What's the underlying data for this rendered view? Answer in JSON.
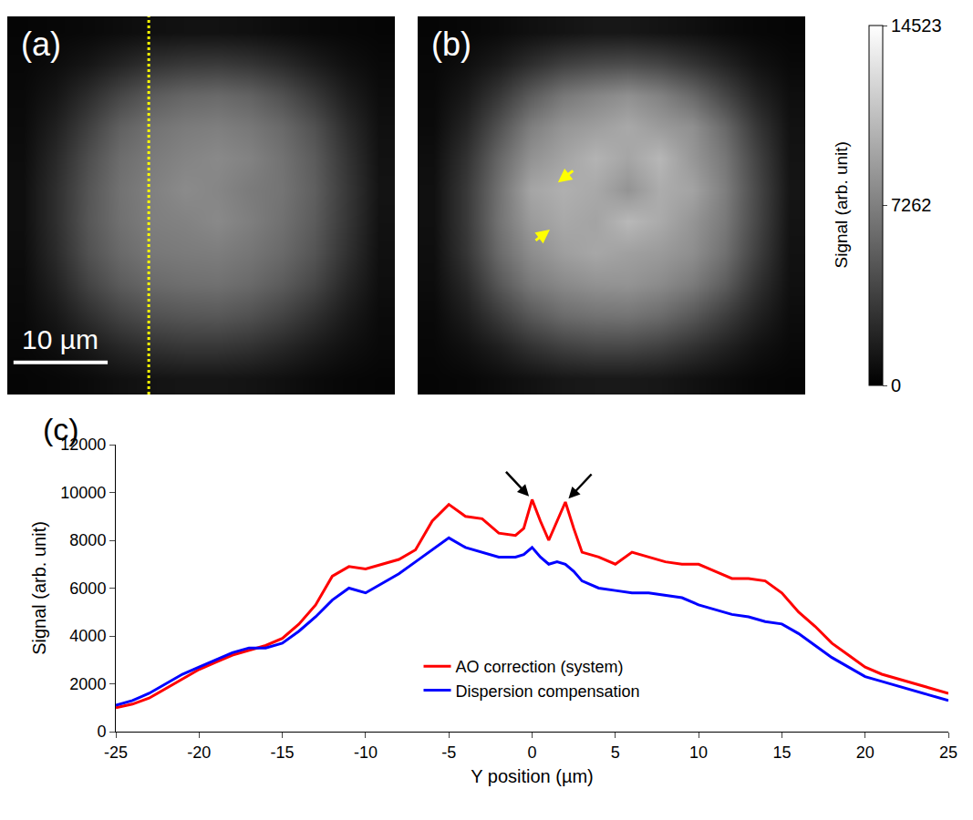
{
  "chart_data": [
    {
      "type": "heatmap",
      "label": "(a)",
      "annotations": [
        "10 µm"
      ],
      "tick_labels": false,
      "zlim": [
        0,
        14523
      ],
      "z": [
        [
          300,
          400,
          500,
          700,
          900,
          1000,
          1000,
          900,
          700,
          500,
          400,
          300
        ],
        [
          400,
          700,
          1200,
          2000,
          2800,
          3200,
          3300,
          3000,
          2400,
          1600,
          900,
          500
        ],
        [
          500,
          1200,
          2500,
          4000,
          5200,
          5800,
          6000,
          5600,
          4600,
          3200,
          1700,
          700
        ],
        [
          600,
          1800,
          3600,
          5500,
          6500,
          7000,
          7200,
          6800,
          6000,
          4600,
          2500,
          900
        ],
        [
          700,
          2300,
          4400,
          6200,
          7000,
          7500,
          7800,
          7400,
          6500,
          5200,
          3000,
          1000
        ],
        [
          800,
          2600,
          4800,
          6500,
          7300,
          7900,
          7600,
          7000,
          6600,
          5400,
          3200,
          1100
        ],
        [
          800,
          2600,
          4900,
          6400,
          7200,
          7400,
          7800,
          7200,
          6400,
          5200,
          3100,
          1000
        ],
        [
          700,
          2400,
          4600,
          6000,
          6800,
          7000,
          7100,
          6700,
          6000,
          4800,
          2800,
          900
        ],
        [
          600,
          1900,
          3800,
          5200,
          6000,
          6300,
          6400,
          6000,
          5200,
          4000,
          2200,
          800
        ],
        [
          500,
          1300,
          2600,
          3800,
          4600,
          4900,
          5000,
          4600,
          3800,
          2700,
          1500,
          600
        ],
        [
          400,
          800,
          1400,
          2200,
          2800,
          3100,
          3100,
          2800,
          2200,
          1500,
          900,
          500
        ],
        [
          300,
          400,
          600,
          900,
          1100,
          1200,
          1200,
          1100,
          900,
          600,
          400,
          300
        ]
      ]
    },
    {
      "type": "heatmap",
      "label": "(b)",
      "tick_labels": false,
      "zlim": [
        0,
        14523
      ],
      "zticks": [
        0,
        7262,
        14523
      ],
      "colorbar_title": "Signal (arb. unit)",
      "z": [
        [
          300,
          400,
          600,
          900,
          1100,
          1300,
          1300,
          1100,
          900,
          600,
          400,
          300
        ],
        [
          400,
          800,
          1500,
          2600,
          3600,
          4100,
          4300,
          3900,
          3000,
          2000,
          1000,
          500
        ],
        [
          500,
          1400,
          3100,
          5200,
          6800,
          7600,
          8200,
          7400,
          6000,
          4000,
          2000,
          800
        ],
        [
          600,
          2100,
          4600,
          7200,
          8500,
          9000,
          9600,
          8800,
          8200,
          6000,
          3100,
          1000
        ],
        [
          800,
          2800,
          5800,
          8300,
          9300,
          10200,
          9400,
          10400,
          8600,
          6800,
          3800,
          1100
        ],
        [
          900,
          3200,
          6400,
          9400,
          10000,
          9600,
          8400,
          9800,
          9300,
          7200,
          4100,
          1200
        ],
        [
          900,
          3200,
          6500,
          8800,
          9600,
          9300,
          10500,
          9700,
          8500,
          6900,
          4000,
          1100
        ],
        [
          800,
          3000,
          6000,
          8000,
          9000,
          9500,
          9100,
          8800,
          8100,
          6400,
          3600,
          1000
        ],
        [
          700,
          2300,
          4900,
          6900,
          7800,
          8300,
          8400,
          7900,
          7000,
          5300,
          2800,
          900
        ],
        [
          500,
          1600,
          3300,
          5000,
          6100,
          6500,
          6600,
          6100,
          5000,
          3500,
          1900,
          700
        ],
        [
          400,
          900,
          1700,
          2800,
          3600,
          4000,
          4000,
          3600,
          2800,
          1900,
          1000,
          500
        ],
        [
          300,
          400,
          700,
          1000,
          1300,
          1400,
          1400,
          1300,
          1000,
          700,
          400,
          300
        ]
      ]
    },
    {
      "type": "line",
      "label": "(c)",
      "xlabel": "Y position (µm)",
      "ylabel": "Signal (arb. unit)",
      "xlim": [
        -25,
        25
      ],
      "xticks": [
        -25,
        -20,
        -15,
        -10,
        -5,
        0,
        5,
        10,
        15,
        20,
        25
      ],
      "ylim": [
        0,
        12000
      ],
      "yticks": [
        0,
        2000,
        4000,
        6000,
        8000,
        10000,
        12000
      ],
      "grid": false,
      "legend": "bottom",
      "x": [
        -25,
        -24,
        -23,
        -22,
        -21,
        -20,
        -19,
        -18,
        -17,
        -16,
        -15,
        -14,
        -13,
        -12,
        -11,
        -10,
        -9,
        -8,
        -7,
        -6,
        -5,
        -4,
        -3,
        -2,
        -1,
        -0.5,
        0,
        0.5,
        1,
        1.5,
        2,
        2.5,
        3,
        4,
        5,
        6,
        7,
        8,
        9,
        10,
        11,
        12,
        13,
        14,
        15,
        16,
        17,
        18,
        19,
        20,
        21,
        22,
        23,
        24,
        25
      ],
      "series": [
        {
          "name": "AO correction (system)",
          "color": "#ff0000",
          "values": [
            1000,
            1150,
            1400,
            1800,
            2200,
            2600,
            2900,
            3200,
            3400,
            3600,
            3900,
            4500,
            5300,
            6500,
            6900,
            6800,
            7000,
            7200,
            7600,
            8800,
            9500,
            9000,
            8900,
            8300,
            8200,
            8500,
            9700,
            8800,
            8000,
            8800,
            9600,
            8500,
            7500,
            7300,
            7000,
            7500,
            7300,
            7100,
            7000,
            7000,
            6700,
            6400,
            6400,
            6300,
            5800,
            5000,
            4400,
            3700,
            3200,
            2700,
            2400,
            2200,
            2000,
            1800,
            1600
          ]
        },
        {
          "name": "Dispersion compensation",
          "color": "#0000ff",
          "values": [
            1100,
            1300,
            1600,
            2000,
            2400,
            2700,
            3000,
            3300,
            3500,
            3500,
            3700,
            4200,
            4800,
            5500,
            6000,
            5800,
            6200,
            6600,
            7100,
            7600,
            8100,
            7700,
            7500,
            7300,
            7300,
            7400,
            7700,
            7300,
            7000,
            7100,
            7000,
            6700,
            6300,
            6000,
            5900,
            5800,
            5800,
            5700,
            5600,
            5300,
            5100,
            4900,
            4800,
            4600,
            4500,
            4100,
            3600,
            3100,
            2700,
            2300,
            2100,
            1900,
            1700,
            1500,
            1300
          ]
        }
      ]
    }
  ]
}
